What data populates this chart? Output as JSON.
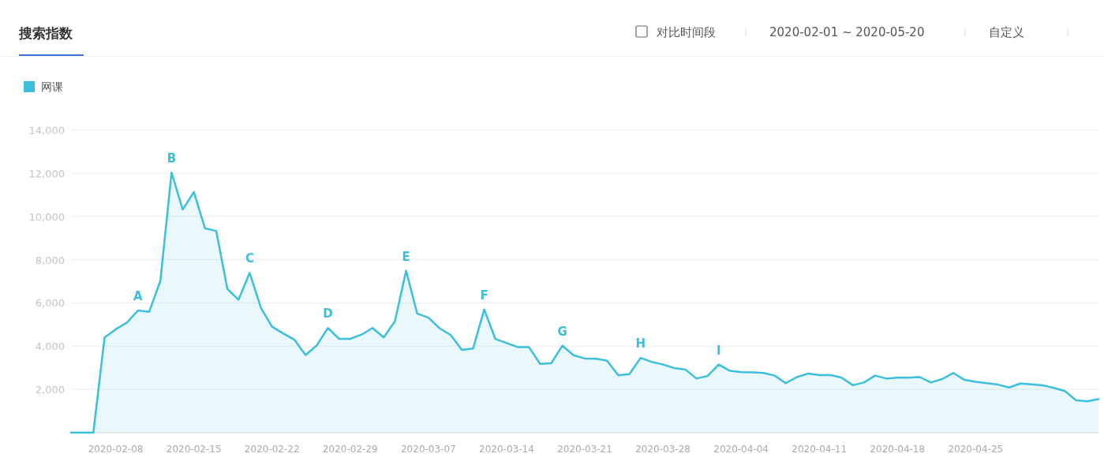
{
  "chart_data": {
    "type": "area",
    "title": "搜索指数",
    "annotations": [
      "对比时间段",
      "2020-02-01 ~ 2020-05-20",
      "自定义",
      {
        "text": "A",
        "x": "2020-02-10",
        "y": 5650
      },
      {
        "text": "B",
        "x": "2020-02-13",
        "y": 12030
      },
      {
        "text": "C",
        "x": "2020-02-20",
        "y": 7390
      },
      {
        "text": "D",
        "x": "2020-02-27",
        "y": 4840
      },
      {
        "text": "E",
        "x": "2020-03-05",
        "y": 7490
      },
      {
        "text": "F",
        "x": "2020-03-12",
        "y": 5700
      },
      {
        "text": "G",
        "x": "2020-03-19",
        "y": 4020
      },
      {
        "text": "H",
        "x": "2020-03-26",
        "y": 3460
      },
      {
        "text": "I",
        "x": "2020-04-02",
        "y": 3150
      }
    ],
    "x": [
      "2020-02-04",
      "2020-02-05",
      "2020-02-06",
      "2020-02-07",
      "2020-02-08",
      "2020-02-09",
      "2020-02-10",
      "2020-02-11",
      "2020-02-12",
      "2020-02-13",
      "2020-02-14",
      "2020-02-15",
      "2020-02-16",
      "2020-02-17",
      "2020-02-18",
      "2020-02-19",
      "2020-02-20",
      "2020-02-21",
      "2020-02-22",
      "2020-02-23",
      "2020-02-24",
      "2020-02-25",
      "2020-02-26",
      "2020-02-27",
      "2020-02-28",
      "2020-02-29",
      "2020-03-01",
      "2020-03-02",
      "2020-03-03",
      "2020-03-04",
      "2020-03-05",
      "2020-03-06",
      "2020-03-07",
      "2020-03-08",
      "2020-03-09",
      "2020-03-10",
      "2020-03-11",
      "2020-03-12",
      "2020-03-13",
      "2020-03-14",
      "2020-03-15",
      "2020-03-16",
      "2020-03-17",
      "2020-03-18",
      "2020-03-19",
      "2020-03-20",
      "2020-03-21",
      "2020-03-22",
      "2020-03-23",
      "2020-03-24",
      "2020-03-25",
      "2020-03-26",
      "2020-03-27",
      "2020-03-28",
      "2020-03-29",
      "2020-03-30",
      "2020-03-31",
      "2020-04-01",
      "2020-04-02",
      "2020-04-03",
      "2020-04-04",
      "2020-04-05",
      "2020-04-06",
      "2020-04-07",
      "2020-04-08",
      "2020-04-09",
      "2020-04-10",
      "2020-04-11",
      "2020-04-12",
      "2020-04-13",
      "2020-04-14",
      "2020-04-15",
      "2020-04-16",
      "2020-04-17",
      "2020-04-18",
      "2020-04-19",
      "2020-04-20",
      "2020-04-21",
      "2020-04-22",
      "2020-04-23",
      "2020-04-24",
      "2020-04-25",
      "2020-04-26",
      "2020-04-27",
      "2020-04-28",
      "2020-04-29",
      "2020-04-30",
      "2020-05-01",
      "2020-05-02",
      "2020-05-03",
      "2020-05-04",
      "2020-05-05",
      "2020-05-06"
    ],
    "series": [
      {
        "name": "网课",
        "color": "#3bbfdc",
        "values": [
          0,
          0,
          0,
          4400,
          4780,
          5090,
          5650,
          5590,
          7020,
          12030,
          10320,
          11130,
          9450,
          9330,
          6650,
          6150,
          7390,
          5770,
          4900,
          4590,
          4300,
          3590,
          4030,
          4840,
          4340,
          4340,
          4530,
          4840,
          4400,
          5150,
          7490,
          5510,
          5320,
          4830,
          4510,
          3830,
          3890,
          5700,
          4330,
          4140,
          3960,
          3960,
          3180,
          3210,
          4020,
          3580,
          3430,
          3420,
          3330,
          2650,
          2710,
          3460,
          3270,
          3150,
          2990,
          2920,
          2500,
          2620,
          3150,
          2860,
          2800,
          2790,
          2760,
          2640,
          2290,
          2570,
          2730,
          2660,
          2660,
          2540,
          2190,
          2320,
          2640,
          2500,
          2540,
          2540,
          2570,
          2320,
          2480,
          2760,
          2440,
          2350,
          2290,
          2220,
          2090,
          2270,
          2230,
          2190,
          2070,
          1920,
          1490,
          1450,
          1550
        ]
      }
    ],
    "xlim": [
      "2020-02-04",
      "2020-05-06"
    ],
    "ylim": [
      0,
      14000
    ],
    "xticks": [
      "2020-02-08",
      "2020-02-15",
      "2020-02-22",
      "2020-02-29",
      "2020-03-07",
      "2020-03-14",
      "2020-03-21",
      "2020-03-28",
      "2020-04-04",
      "2020-04-11",
      "2020-04-18",
      "2020-04-25"
    ],
    "yticks": [
      {
        "value": 0,
        "label": null
      },
      {
        "value": 2000,
        "label": "2,000"
      },
      {
        "value": 4000,
        "label": "4,000"
      },
      {
        "value": 6000,
        "label": "6,000"
      },
      {
        "value": 8000,
        "label": "8,000"
      },
      {
        "value": 10000,
        "label": "10,000"
      },
      {
        "value": 12000,
        "label": "12,000"
      },
      {
        "value": 14000,
        "label": "14,000"
      }
    ],
    "grid": "y",
    "legend": "top left"
  }
}
